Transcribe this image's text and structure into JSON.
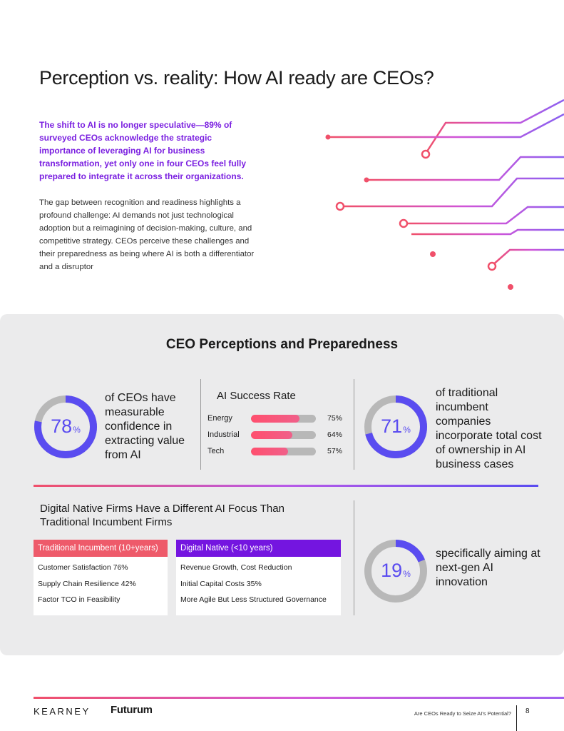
{
  "page": {
    "title": "Perception vs. reality: How AI ready are CEOs?",
    "lead": "The shift to AI is no longer speculative—89% of surveyed CEOs acknowledge the strategic importance of leveraging AI for business transformation, yet only one in four CEOs feel fully prepared to integrate it across their organizations.",
    "body": "The gap between recognition and readiness highlights a profound challenge: AI demands not just technological adoption but a reimagining of decision-making, culture, and competitive strategy. CEOs perceive these challenges and their preparedness as being where AI is both a differentiator and a disruptor"
  },
  "panel": {
    "title": "CEO Perceptions and Preparedness",
    "stat1": {
      "value": "78",
      "unit": "%",
      "fraction": 0.78,
      "text": "of CEOs have measurable confidence in extracting value from AI"
    },
    "ai_success": {
      "title": "AI Success Rate",
      "rows": [
        {
          "label": "Energy",
          "value": "75%",
          "fraction": 0.75
        },
        {
          "label": "Industrial",
          "value": "64%",
          "fraction": 0.64
        },
        {
          "label": "Tech",
          "value": "57%",
          "fraction": 0.57
        }
      ]
    },
    "stat2": {
      "value": "71",
      "unit": "%",
      "fraction": 0.71,
      "text": "of traditional incumbent companies incorporate total cost of ownership in AI business cases"
    },
    "digital_native": {
      "title": "Digital Native Firms Have a Different AI Focus Than Traditional Incumbent Firms",
      "traditional": {
        "header": "Traditional Incumbent (10+years)",
        "items": [
          "Customer Satisfaction 76%",
          "Supply Chain Resilience 42%",
          "Factor TCO in Feasibility"
        ]
      },
      "native": {
        "header": "Digital Native (<10 years)",
        "items": [
          "Revenue Growth, Cost Reduction",
          "Initial Capital Costs 35%",
          "More Agile But Less Structured Governance"
        ]
      }
    },
    "stat3": {
      "value": "19",
      "unit": "%",
      "fraction": 0.19,
      "text": "specifically aiming at next-gen AI innovation"
    }
  },
  "footer": {
    "logo_left": "KEARNEY",
    "logo_right": "Futurum",
    "caption": "Are CEOs Ready to Seize AI's Potential?",
    "page_number": "8"
  },
  "colors": {
    "accent_purple": "#7a1fe0",
    "ring_blue": "#5a4cf0",
    "ring_gray": "#b8b8b8",
    "bar_red": "#ff4f6e",
    "header_red": "#ee5a6a",
    "header_purple": "#7415e0"
  }
}
